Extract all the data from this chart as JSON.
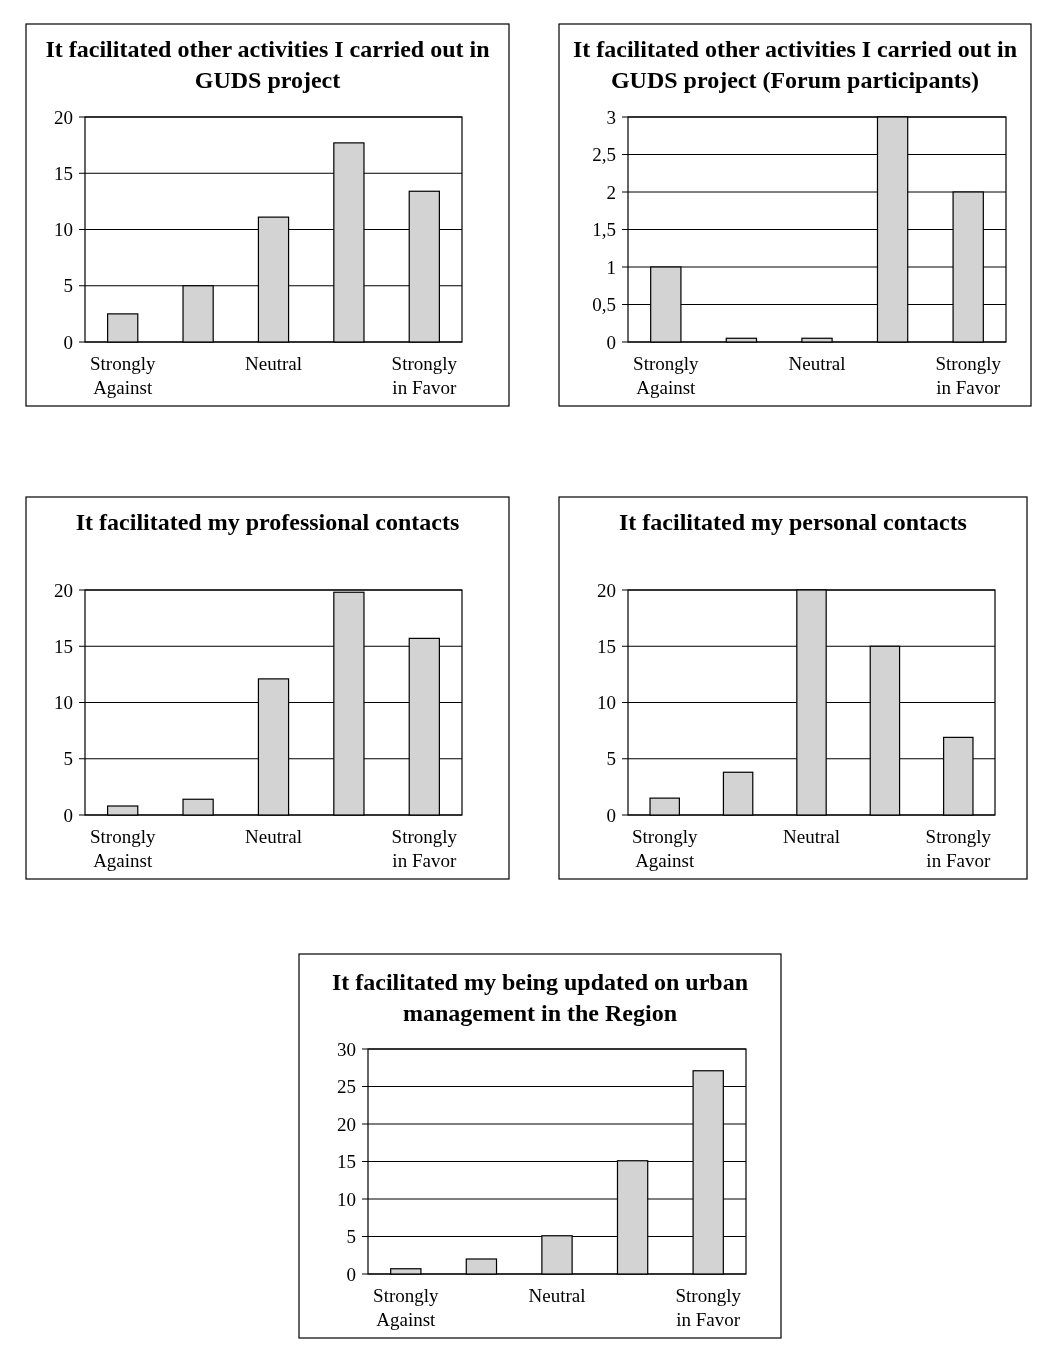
{
  "chart_data": [
    {
      "type": "bar",
      "title": "It facilitated other activities I carried out in GUDS project",
      "categories": [
        "Strongly Against",
        null,
        "Neutral",
        null,
        "Strongly in Favor"
      ],
      "values": [
        2.5,
        5,
        11.1,
        17.7,
        13.4
      ],
      "color": "#d3d3d3",
      "ylim": [
        0,
        20
      ],
      "yticks": [
        0,
        5,
        10,
        15,
        20
      ],
      "grid": "y"
    },
    {
      "type": "bar",
      "title": "It facilitated other activities I carried out in GUDS project (Forum participants)",
      "categories": [
        "Strongly Against",
        null,
        "Neutral",
        null,
        "Strongly in Favor"
      ],
      "values": [
        1,
        0.05,
        0.05,
        3,
        2
      ],
      "color": "#d3d3d3",
      "ylim": [
        0,
        3
      ],
      "yticks": [
        0,
        {
          "value": 0.5,
          "label": "0,5"
        },
        1,
        {
          "value": 1.5,
          "label": "1,5"
        },
        2,
        {
          "value": 2.5,
          "label": "2,5"
        },
        3
      ],
      "grid": "y"
    },
    {
      "type": "bar",
      "title": "It facilitated my professional contacts",
      "categories": [
        "Strongly Against",
        null,
        "Neutral",
        null,
        "Strongly in Favor"
      ],
      "values": [
        0.8,
        1.4,
        12.1,
        19.8,
        15.7
      ],
      "color": "#d3d3d3",
      "ylim": [
        0,
        20
      ],
      "yticks": [
        0,
        5,
        10,
        15,
        20
      ],
      "grid": "y"
    },
    {
      "type": "bar",
      "title": "It facilitated my personal contacts",
      "categories": [
        "Strongly Against",
        null,
        "Neutral",
        null,
        "Strongly in Favor"
      ],
      "values": [
        1.5,
        3.8,
        20,
        15,
        6.9
      ],
      "color": "#d3d3d3",
      "ylim": [
        0,
        20
      ],
      "yticks": [
        0,
        5,
        10,
        15,
        20
      ],
      "grid": "y"
    },
    {
      "type": "bar",
      "title": "It facilitated my being updated on urban management in the Region",
      "categories": [
        "Strongly Against",
        null,
        "Neutral",
        null,
        "Strongly in Favor"
      ],
      "values": [
        0.7,
        2,
        5.1,
        15.1,
        27.1
      ],
      "color": "#d3d3d3",
      "ylim": [
        0,
        30
      ],
      "yticks": [
        0,
        5,
        10,
        15,
        20,
        25,
        30
      ],
      "grid": "y"
    }
  ]
}
